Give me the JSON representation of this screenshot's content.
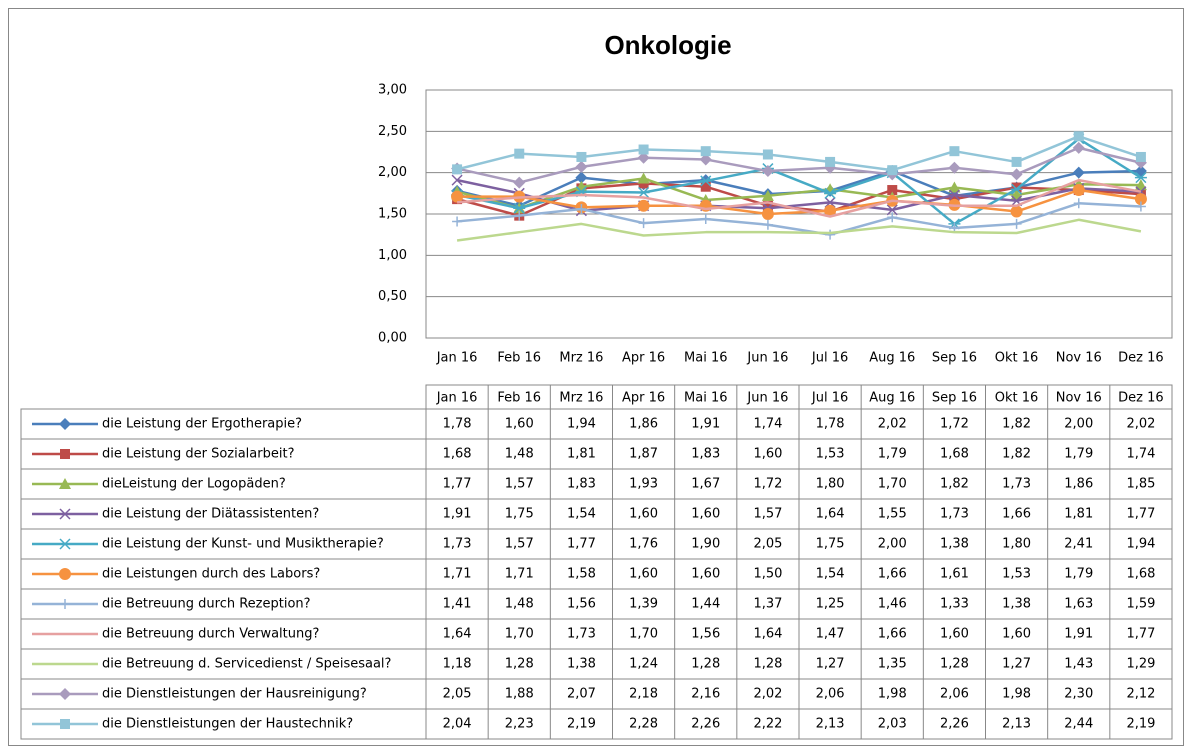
{
  "chart_data": {
    "type": "line",
    "title": "Onkologie",
    "categories": [
      "Jan 16",
      "Feb 16",
      "Mrz 16",
      "Apr 16",
      "Mai 16",
      "Jun 16",
      "Jul 16",
      "Aug 16",
      "Sep 16",
      "Okt 16",
      "Nov 16",
      "Dez 16"
    ],
    "ylim": [
      0,
      3
    ],
    "yticks": [
      {
        "value": 0,
        "label": "0,00"
      },
      {
        "value": 0.5,
        "label": "0,50"
      },
      {
        "value": 1,
        "label": "1,00"
      },
      {
        "value": 1.5,
        "label": "1,50"
      },
      {
        "value": 2,
        "label": "2,00"
      },
      {
        "value": 2.5,
        "label": "2,50"
      },
      {
        "value": 3,
        "label": "3,00"
      }
    ],
    "grid": true,
    "series": [
      {
        "name": "die Leistung der Ergotherapie?",
        "color": "#4a7ebb",
        "marker": "diamond",
        "values": [
          1.78,
          1.6,
          1.94,
          1.86,
          1.91,
          1.74,
          1.78,
          2.02,
          1.72,
          1.82,
          2.0,
          2.02
        ],
        "value_labels": [
          "1,78",
          "1,60",
          "1,94",
          "1,86",
          "1,91",
          "1,74",
          "1,78",
          "2,02",
          "1,72",
          "1,82",
          "2,00",
          "2,02"
        ]
      },
      {
        "name": "die Leistung der Sozialarbeit?",
        "color": "#be4b48",
        "marker": "square",
        "values": [
          1.68,
          1.48,
          1.81,
          1.87,
          1.83,
          1.6,
          1.53,
          1.79,
          1.68,
          1.82,
          1.79,
          1.74
        ],
        "value_labels": [
          "1,68",
          "1,48",
          "1,81",
          "1,87",
          "1,83",
          "1,60",
          "1,53",
          "1,79",
          "1,68",
          "1,82",
          "1,79",
          "1,74"
        ]
      },
      {
        "name": "dieLeistung der Logopäden?",
        "color": "#98b954",
        "marker": "triangle",
        "values": [
          1.77,
          1.57,
          1.83,
          1.93,
          1.67,
          1.72,
          1.8,
          1.7,
          1.82,
          1.73,
          1.86,
          1.85
        ],
        "value_labels": [
          "1,77",
          "1,57",
          "1,83",
          "1,93",
          "1,67",
          "1,72",
          "1,80",
          "1,70",
          "1,82",
          "1,73",
          "1,86",
          "1,85"
        ]
      },
      {
        "name": "die Leistung der Diätassistenten?",
        "color": "#7d60a0",
        "marker": "x",
        "values": [
          1.91,
          1.75,
          1.54,
          1.6,
          1.6,
          1.57,
          1.64,
          1.55,
          1.73,
          1.66,
          1.81,
          1.77
        ],
        "value_labels": [
          "1,91",
          "1,75",
          "1,54",
          "1,60",
          "1,60",
          "1,57",
          "1,64",
          "1,55",
          "1,73",
          "1,66",
          "1,81",
          "1,77"
        ]
      },
      {
        "name": "die Leistung der Kunst- und Musiktherapie?",
        "color": "#46aac5",
        "marker": "star",
        "values": [
          1.73,
          1.57,
          1.77,
          1.76,
          1.9,
          2.05,
          1.75,
          2.0,
          1.38,
          1.8,
          2.41,
          1.94
        ],
        "value_labels": [
          "1,73",
          "1,57",
          "1,77",
          "1,76",
          "1,90",
          "2,05",
          "1,75",
          "2,00",
          "1,38",
          "1,80",
          "2,41",
          "1,94"
        ]
      },
      {
        "name": "die Leistungen durch  des Labors?",
        "color": "#f69240",
        "marker": "circle",
        "values": [
          1.71,
          1.71,
          1.58,
          1.6,
          1.6,
          1.5,
          1.54,
          1.66,
          1.61,
          1.53,
          1.79,
          1.68
        ],
        "value_labels": [
          "1,71",
          "1,71",
          "1,58",
          "1,60",
          "1,60",
          "1,50",
          "1,54",
          "1,66",
          "1,61",
          "1,53",
          "1,79",
          "1,68"
        ]
      },
      {
        "name": "die Betreuung durch Rezeption?",
        "color": "#95b3d7",
        "marker": "plus",
        "values": [
          1.41,
          1.48,
          1.56,
          1.39,
          1.44,
          1.37,
          1.25,
          1.46,
          1.33,
          1.38,
          1.63,
          1.59
        ],
        "value_labels": [
          "1,41",
          "1,48",
          "1,56",
          "1,39",
          "1,44",
          "1,37",
          "1,25",
          "1,46",
          "1,33",
          "1,38",
          "1,63",
          "1,59"
        ]
      },
      {
        "name": "die Betreuung durch Verwaltung?",
        "color": "#e6a0a0",
        "marker": "none",
        "values": [
          1.64,
          1.7,
          1.73,
          1.7,
          1.56,
          1.64,
          1.47,
          1.66,
          1.6,
          1.6,
          1.91,
          1.77
        ],
        "value_labels": [
          "1,64",
          "1,70",
          "1,73",
          "1,70",
          "1,56",
          "1,64",
          "1,47",
          "1,66",
          "1,60",
          "1,60",
          "1,91",
          "1,77"
        ]
      },
      {
        "name": "die Betreuung d. Servicedienst / Speisesaal?",
        "color": "#bcd88e",
        "marker": "none",
        "values": [
          1.18,
          1.28,
          1.38,
          1.24,
          1.28,
          1.28,
          1.27,
          1.35,
          1.28,
          1.27,
          1.43,
          1.29
        ],
        "value_labels": [
          "1,18",
          "1,28",
          "1,38",
          "1,24",
          "1,28",
          "1,28",
          "1,27",
          "1,35",
          "1,28",
          "1,27",
          "1,43",
          "1,29"
        ]
      },
      {
        "name": "die Dienstleistungen der Hausreinigung?",
        "color": "#a99bbd",
        "marker": "diamond",
        "values": [
          2.05,
          1.88,
          2.07,
          2.18,
          2.16,
          2.02,
          2.06,
          1.98,
          2.06,
          1.98,
          2.3,
          2.12
        ],
        "value_labels": [
          "2,05",
          "1,88",
          "2,07",
          "2,18",
          "2,16",
          "2,02",
          "2,06",
          "1,98",
          "2,06",
          "1,98",
          "2,30",
          "2,12"
        ]
      },
      {
        "name": "die Dienstleistungen der Haustechnik?",
        "color": "#92c5d8",
        "marker": "square",
        "values": [
          2.04,
          2.23,
          2.19,
          2.28,
          2.26,
          2.22,
          2.13,
          2.03,
          2.26,
          2.13,
          2.44,
          2.19
        ],
        "value_labels": [
          "2,04",
          "2,23",
          "2,19",
          "2,28",
          "2,26",
          "2,22",
          "2,13",
          "2,03",
          "2,26",
          "2,13",
          "2,44",
          "2,19"
        ]
      }
    ]
  }
}
